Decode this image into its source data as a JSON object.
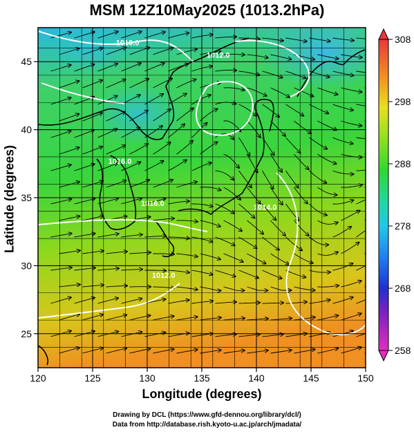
{
  "title": "MSM 12Z10May2025 (1013.2hPa)",
  "axes": {
    "xlabel": "Longitude (degrees)",
    "ylabel": "Latitude  (degrees)",
    "xlim": [
      120,
      150
    ],
    "ylim": [
      22.5,
      47.5
    ],
    "xticks": [
      "120",
      "125",
      "130",
      "135",
      "140",
      "145",
      "150"
    ],
    "xtick_values": [
      120,
      125,
      130,
      135,
      140,
      145,
      150
    ],
    "yticks": [
      "25",
      "30",
      "35",
      "40",
      "45"
    ],
    "ytick_values": [
      25,
      30,
      35,
      40,
      45
    ],
    "grid": true
  },
  "colorbar": {
    "min": 258,
    "max": 308,
    "tick_values": [
      308,
      298,
      288,
      278,
      268,
      258
    ],
    "tick_labels": [
      "308",
      "298",
      "288",
      "278",
      "268",
      "258"
    ]
  },
  "contours": [
    {
      "label": "1010.0",
      "lon": 128.2,
      "lat": 46.2
    },
    {
      "label": "1012.0",
      "lon": 131.5,
      "lat": 29.1
    },
    {
      "label": "1016.0",
      "lon": 130.5,
      "lat": 34.4
    },
    {
      "label": "1012.0",
      "lon": 136.5,
      "lat": 45.3
    },
    {
      "label": "1014.0",
      "lon": 140.8,
      "lat": 34.1
    },
    {
      "label": "1016.0",
      "lon": 127.5,
      "lat": 37.5
    }
  ],
  "credits": {
    "line1": "Drawing by DCL (https://www.gfd-dennou.org/library/dcl/)",
    "line2": "Data from http://database.rish.kyoto-u.ac.jp/arch/jmadata/"
  },
  "colors": {
    "warm": "#f08a20",
    "mid": "#8ed81e",
    "green": "#27d64a",
    "cool": "#35c3c8",
    "contour": "#ffffff",
    "coast": "#000000"
  }
}
